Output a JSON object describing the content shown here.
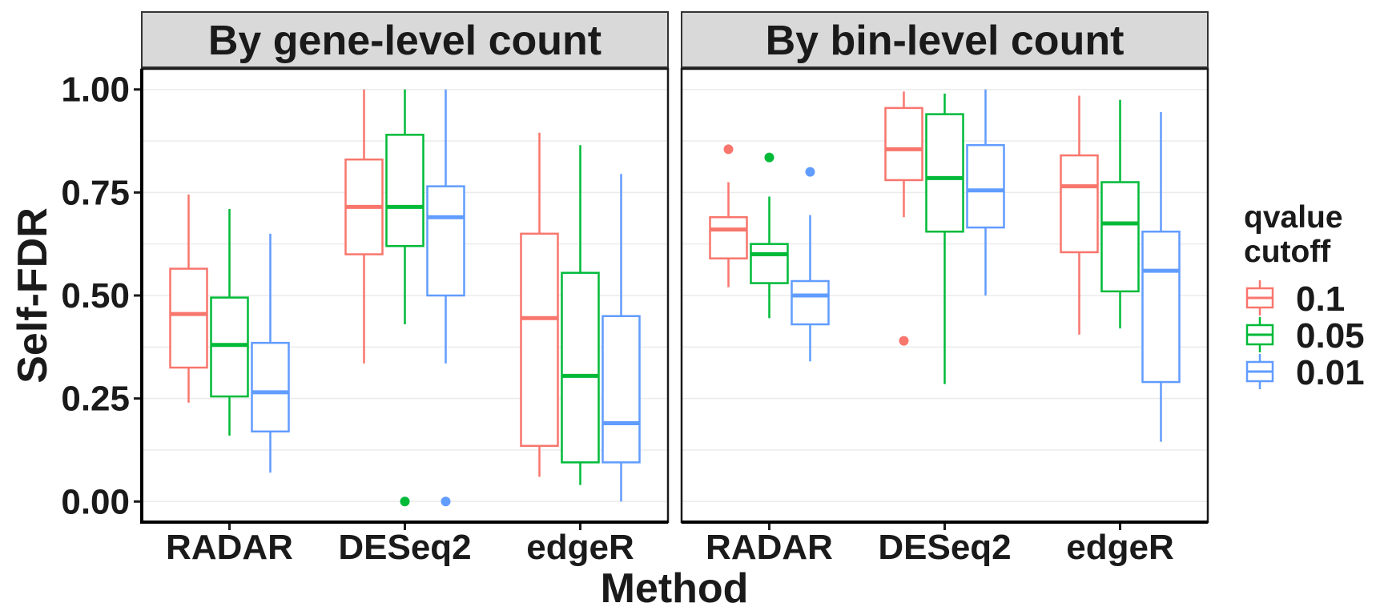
{
  "chart_data": {
    "type": "box",
    "xlabel": "Method",
    "ylabel": "Self-FDR",
    "ylim": [
      -0.05,
      1.05
    ],
    "yticks": [
      "0.00",
      "0.25",
      "0.50",
      "0.75",
      "1.00"
    ],
    "grid": "horizontal major and minor",
    "categories": [
      "RADAR",
      "DESeq2",
      "edgeR"
    ],
    "legend": {
      "title_lines": [
        "qvalue",
        "cutoff"
      ],
      "position": "right",
      "series": [
        {
          "name": "0.1",
          "color": "#F8766D"
        },
        {
          "name": "0.05",
          "color": "#00BA38"
        },
        {
          "name": "0.01",
          "color": "#619CFF"
        }
      ]
    },
    "panels": [
      {
        "title": "By gene-level count",
        "groups": [
          {
            "method": "RADAR",
            "boxes": [
              {
                "series": "0.1",
                "min": 0.24,
                "q1": 0.325,
                "median": 0.455,
                "q3": 0.565,
                "max": 0.745,
                "outliers": []
              },
              {
                "series": "0.05",
                "min": 0.16,
                "q1": 0.255,
                "median": 0.38,
                "q3": 0.495,
                "max": 0.71,
                "outliers": []
              },
              {
                "series": "0.01",
                "min": 0.07,
                "q1": 0.17,
                "median": 0.265,
                "q3": 0.385,
                "max": 0.65,
                "outliers": []
              }
            ]
          },
          {
            "method": "DESeq2",
            "boxes": [
              {
                "series": "0.1",
                "min": 0.335,
                "q1": 0.6,
                "median": 0.715,
                "q3": 0.83,
                "max": 1.0,
                "outliers": []
              },
              {
                "series": "0.05",
                "min": 0.43,
                "q1": 0.62,
                "median": 0.715,
                "q3": 0.89,
                "max": 1.0,
                "outliers": [
                  0.0
                ]
              },
              {
                "series": "0.01",
                "min": 0.335,
                "q1": 0.5,
                "median": 0.69,
                "q3": 0.765,
                "max": 1.0,
                "outliers": [
                  0.0
                ]
              }
            ]
          },
          {
            "method": "edgeR",
            "boxes": [
              {
                "series": "0.1",
                "min": 0.06,
                "q1": 0.135,
                "median": 0.445,
                "q3": 0.65,
                "max": 0.895,
                "outliers": []
              },
              {
                "series": "0.05",
                "min": 0.04,
                "q1": 0.095,
                "median": 0.305,
                "q3": 0.555,
                "max": 0.865,
                "outliers": []
              },
              {
                "series": "0.01",
                "min": 0.0,
                "q1": 0.095,
                "median": 0.19,
                "q3": 0.45,
                "max": 0.795,
                "outliers": []
              }
            ]
          }
        ]
      },
      {
        "title": "By bin-level count",
        "groups": [
          {
            "method": "RADAR",
            "boxes": [
              {
                "series": "0.1",
                "min": 0.52,
                "q1": 0.59,
                "median": 0.66,
                "q3": 0.69,
                "max": 0.775,
                "outliers": [
                  0.855
                ]
              },
              {
                "series": "0.05",
                "min": 0.445,
                "q1": 0.53,
                "median": 0.6,
                "q3": 0.625,
                "max": 0.74,
                "outliers": [
                  0.835
                ]
              },
              {
                "series": "0.01",
                "min": 0.34,
                "q1": 0.43,
                "median": 0.5,
                "q3": 0.535,
                "max": 0.695,
                "outliers": [
                  0.8
                ]
              }
            ]
          },
          {
            "method": "DESeq2",
            "boxes": [
              {
                "series": "0.1",
                "min": 0.69,
                "q1": 0.78,
                "median": 0.855,
                "q3": 0.955,
                "max": 0.995,
                "outliers": [
                  0.39
                ]
              },
              {
                "series": "0.05",
                "min": 0.285,
                "q1": 0.655,
                "median": 0.785,
                "q3": 0.94,
                "max": 0.99,
                "outliers": []
              },
              {
                "series": "0.01",
                "min": 0.5,
                "q1": 0.665,
                "median": 0.755,
                "q3": 0.865,
                "max": 1.0,
                "outliers": []
              }
            ]
          },
          {
            "method": "edgeR",
            "boxes": [
              {
                "series": "0.1",
                "min": 0.405,
                "q1": 0.605,
                "median": 0.765,
                "q3": 0.84,
                "max": 0.985,
                "outliers": []
              },
              {
                "series": "0.05",
                "min": 0.42,
                "q1": 0.51,
                "median": 0.675,
                "q3": 0.775,
                "max": 0.975,
                "outliers": []
              },
              {
                "series": "0.01",
                "min": 0.145,
                "q1": 0.29,
                "median": 0.56,
                "q3": 0.655,
                "max": 0.945,
                "outliers": []
              }
            ]
          }
        ]
      }
    ]
  }
}
